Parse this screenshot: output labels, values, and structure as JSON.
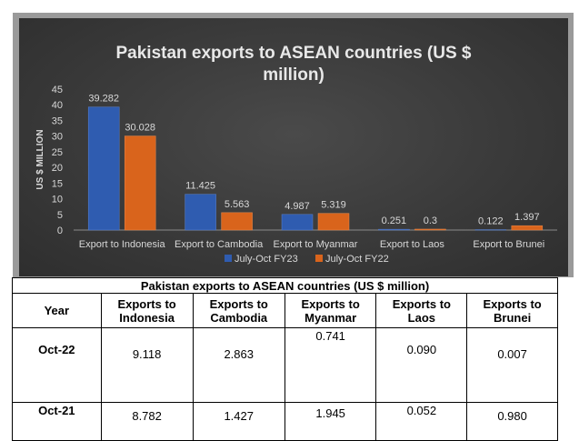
{
  "chart_data": {
    "type": "bar",
    "title": "Pakistan exports to ASEAN countries (US $ million)",
    "title_lines": [
      "Pakistan exports to ASEAN countries (US $",
      "million)"
    ],
    "ylabel": "US $ MILLION",
    "xlabel": "",
    "ylim": [
      0,
      45
    ],
    "yticks": [
      0,
      5,
      10,
      15,
      20,
      25,
      30,
      35,
      40,
      45
    ],
    "grid": false,
    "legend_position": "bottom",
    "categories": [
      "Export to Indonesia",
      "Export to Cambodia",
      "Export to Myanmar",
      "Export to Laos",
      "Export to Brunei"
    ],
    "series": [
      {
        "name": "July-Oct FY23",
        "values": [
          39.282,
          11.425,
          4.987,
          0.251,
          0.122
        ],
        "labels": [
          "39.282",
          "11.425",
          "4.987",
          "0.251",
          "0.122"
        ],
        "color": "#2f5cb0"
      },
      {
        "name": "July-Oct FY22",
        "values": [
          30.028,
          5.563,
          5.319,
          0.3,
          1.397
        ],
        "labels": [
          "30.028",
          "5.563",
          "5.319",
          "0.3",
          "1.397"
        ],
        "color": "#d9641c"
      }
    ]
  },
  "table": {
    "caption": "Pakistan exports to ASEAN countries (US $ million)",
    "year_header": "Year",
    "headers": [
      [
        "Exports to",
        "Indonesia"
      ],
      [
        "Exports to",
        "Cambodia"
      ],
      [
        "Exports to",
        "Myanmar"
      ],
      [
        "Exports to",
        "Laos"
      ],
      [
        "Exports to",
        "Brunei"
      ]
    ],
    "rows": [
      {
        "year": "Oct-22",
        "values": [
          "9.118",
          "2.863",
          "0.741",
          "0.090",
          "0.007"
        ]
      },
      {
        "year": "Oct-21",
        "values": [
          "8.782",
          "1.427",
          "1.945",
          "0.052",
          "0.980"
        ]
      }
    ]
  }
}
